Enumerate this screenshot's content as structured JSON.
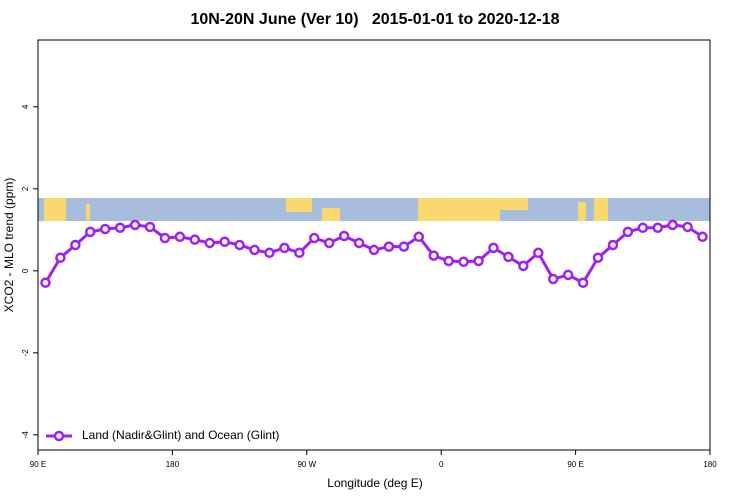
{
  "chart_data": {
    "type": "line",
    "title": "10N-20N June (Ver 10)   2015-01-01 to 2020-12-18",
    "x_label": "Longitude (deg E)",
    "y_label": "XCO2 - MLO trend (ppm)",
    "x": [
      95,
      105,
      115,
      125,
      135,
      145,
      155,
      165,
      175,
      185,
      195,
      205,
      215,
      225,
      235,
      245,
      255,
      265,
      275,
      285,
      295,
      305,
      315,
      325,
      335,
      345,
      355,
      365,
      375,
      385,
      395,
      405,
      415,
      425,
      435,
      445,
      455,
      465,
      475,
      485,
      495,
      505,
      515,
      525,
      535
    ],
    "series": [
      {
        "name": "Land (Nadir&Glint) and Ocean (Glint)",
        "color": "#a020f0",
        "values": [
          -0.29,
          0.32,
          0.63,
          0.95,
          1.02,
          1.05,
          1.12,
          1.07,
          0.8,
          0.83,
          0.76,
          0.68,
          0.71,
          0.63,
          0.51,
          0.44,
          0.56,
          0.44,
          0.8,
          0.68,
          0.85,
          0.68,
          0.51,
          0.59,
          0.59,
          0.83,
          0.37,
          0.24,
          0.22,
          0.24,
          0.56,
          0.34,
          0.12,
          0.44,
          -0.2,
          -0.1,
          -0.29,
          0.32,
          0.63,
          0.95,
          1.05,
          1.05,
          1.12,
          1.07,
          0.83
        ]
      }
    ],
    "xlim": [
      90,
      540
    ],
    "xticks": [
      {
        "value": 90,
        "label": "90 E"
      },
      {
        "value": 180,
        "label": "180"
      },
      {
        "value": 270,
        "label": "90 W"
      },
      {
        "value": 360,
        "label": "0"
      },
      {
        "value": 450,
        "label": "90 E"
      },
      {
        "value": 540,
        "label": "180"
      }
    ],
    "ylim": [
      -4.37,
      5.63
    ],
    "yticks": [
      -4,
      -2,
      0,
      2,
      4
    ],
    "legend": "bottomleft",
    "grid": false
  }
}
